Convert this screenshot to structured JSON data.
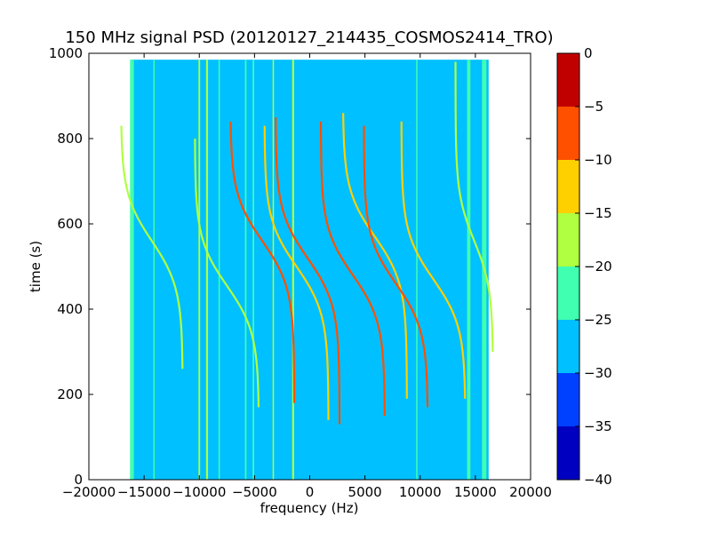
{
  "chart_data": {
    "type": "heatmap",
    "title": "150 MHz signal PSD (20120127_214435_COSMOS2414_TRO)",
    "xlabel": "frequency (Hz)",
    "ylabel": "time (s)",
    "xlim": [
      -20000,
      20000
    ],
    "ylim": [
      0,
      1000
    ],
    "x_ticks": [
      -20000,
      -15000,
      -10000,
      -5000,
      0,
      5000,
      10000,
      15000,
      20000
    ],
    "x_tick_labels": [
      "−20000",
      "−15000",
      "−10000",
      "−5000",
      "0",
      "5000",
      "10000",
      "15000",
      "20000"
    ],
    "y_ticks": [
      0,
      200,
      400,
      600,
      800,
      1000
    ],
    "y_tick_labels": [
      "0",
      "200",
      "400",
      "600",
      "800",
      "1000"
    ],
    "data_extent": {
      "x": [
        -16200,
        16200
      ],
      "y": [
        0,
        985
      ]
    },
    "background_level": -27,
    "colorbar": {
      "levels": [
        -40,
        -35,
        -30,
        -25,
        -20,
        -15,
        -10,
        -5,
        0
      ],
      "tick_labels": [
        "−40",
        "−35",
        "−30",
        "−25",
        "−20",
        "−15",
        "−10",
        "−5",
        "0"
      ],
      "colors": [
        "#0000c0",
        "#0040ff",
        "#00c0ff",
        "#40ffb0",
        "#b0ff40",
        "#ffd000",
        "#ff5000",
        "#c00000"
      ]
    },
    "vertical_lines": [
      {
        "freq": -16100,
        "t0": 0,
        "t1": 985,
        "level": -22,
        "width_hz": 350
      },
      {
        "freq": -14100,
        "t0": 0,
        "t1": 985,
        "level": -23,
        "width_hz": 120
      },
      {
        "freq": -10000,
        "t0": 0,
        "t1": 985,
        "level": -18,
        "width_hz": 150
      },
      {
        "freq": -9300,
        "t0": 0,
        "t1": 985,
        "level": -18,
        "width_hz": 180
      },
      {
        "freq": -8200,
        "t0": 0,
        "t1": 985,
        "level": -22,
        "width_hz": 120
      },
      {
        "freq": -5800,
        "t0": 0,
        "t1": 985,
        "level": -23,
        "width_hz": 140
      },
      {
        "freq": -5100,
        "t0": 0,
        "t1": 985,
        "level": -22,
        "width_hz": 140
      },
      {
        "freq": -3300,
        "t0": 0,
        "t1": 985,
        "level": -20,
        "width_hz": 120
      },
      {
        "freq": -1500,
        "t0": 0,
        "t1": 985,
        "level": -18,
        "width_hz": 180
      },
      {
        "freq": 9700,
        "t0": 0,
        "t1": 985,
        "level": -22,
        "width_hz": 120
      },
      {
        "freq": 14400,
        "t0": 0,
        "t1": 985,
        "level": -23,
        "width_hz": 300
      },
      {
        "freq": 15800,
        "t0": 0,
        "t1": 985,
        "level": -22,
        "width_hz": 400
      }
    ],
    "doppler_tracks": [
      {
        "t_center": 560,
        "f_center": -14300,
        "amplitude": 2800,
        "t_scale": 110,
        "t0": 260,
        "t1": 830,
        "level": -16
      },
      {
        "t_center": 455,
        "f_center": -7500,
        "amplitude": 2900,
        "t_scale": 110,
        "t0": 170,
        "t1": 800,
        "level": -18
      },
      {
        "t_center": 560,
        "f_center": -4300,
        "amplitude": 2900,
        "t_scale": 110,
        "t0": 180,
        "t1": 840,
        "level": -8
      },
      {
        "t_center": 500,
        "f_center": -1200,
        "amplitude": 2900,
        "t_scale": 110,
        "t0": 140,
        "t1": 830,
        "level": -12
      },
      {
        "t_center": 520,
        "f_center": -200,
        "amplitude": 2900,
        "t_scale": 110,
        "t0": 130,
        "t1": 850,
        "level": -7
      },
      {
        "t_center": 480,
        "f_center": 3900,
        "amplitude": 2900,
        "t_scale": 110,
        "t0": 150,
        "t1": 840,
        "level": -8
      },
      {
        "t_center": 570,
        "f_center": 5900,
        "amplitude": 2900,
        "t_scale": 110,
        "t0": 190,
        "t1": 860,
        "level": -11
      },
      {
        "t_center": 460,
        "f_center": 7800,
        "amplitude": 2900,
        "t_scale": 110,
        "t0": 170,
        "t1": 830,
        "level": -10
      },
      {
        "t_center": 470,
        "f_center": 11200,
        "amplitude": 2900,
        "t_scale": 110,
        "t0": 190,
        "t1": 840,
        "level": -15
      },
      {
        "t_center": 560,
        "f_center": 14900,
        "amplitude": 1700,
        "t_scale": 110,
        "t0": 300,
        "t1": 980,
        "level": -19
      }
    ]
  }
}
